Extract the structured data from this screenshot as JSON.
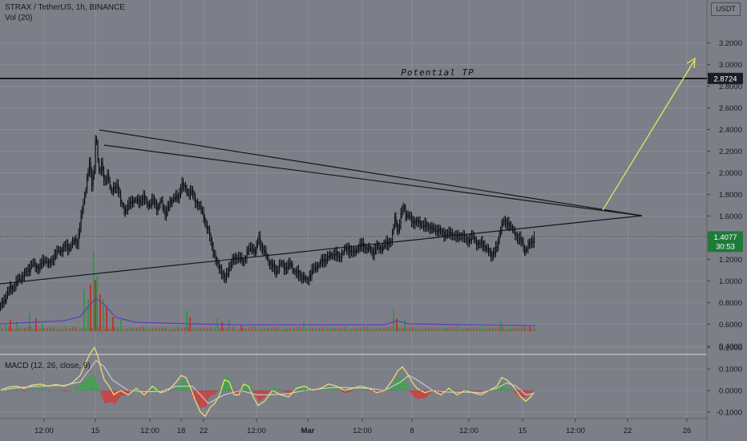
{
  "header": {
    "symbol_line": "STRAX / TetherUS, 1h, BINANCE",
    "volume_label": "Vol (20)",
    "macd_label": "MACD (12, 26, close, 9)",
    "currency": "USDT"
  },
  "colors": {
    "background": "#7c7f87",
    "grid": "#898c94",
    "candles": "#0e0f12",
    "trendlines": "#14161a",
    "projection_arrow": "#e6e85a",
    "tp_line": "#050505",
    "tp_badge_bg": "#1b1d22",
    "price_badge_bg": "#1f7a3a",
    "macd_line": "#e0d870",
    "signal_line": "#c2c4c8",
    "hist_up": "#3fa34d",
    "hist_down": "#d23b3b",
    "vol_up": "#3f8f4f",
    "vol_down": "#b8382f",
    "vol_ma": "#5a3fbf"
  },
  "chart_data": [
    {
      "type": "line",
      "pane": "price",
      "y_ticks": [
        "3.2000",
        "3.0000",
        "2.8000",
        "2.6000",
        "2.4000",
        "2.2000",
        "2.0000",
        "1.8000",
        "1.6000",
        "1.4000",
        "1.2000",
        "1.0000",
        "0.8000",
        "0.6000",
        "0.4000"
      ],
      "ylim": [
        0.3,
        3.35
      ],
      "x_ticks": [
        "12:00",
        "15",
        "12:00",
        "18",
        "22",
        "12:00",
        "Mar",
        "12:00",
        "8",
        "12:00",
        "15",
        "12:00",
        "22",
        "26"
      ],
      "series": [
        {
          "x": [
            0,
            6,
            12,
            20,
            30,
            40,
            48,
            56,
            60,
            66,
            72,
            80,
            86,
            92,
            96,
            100,
            104,
            108,
            111,
            114,
            117,
            119,
            121,
            123,
            126,
            130,
            134,
            138,
            142,
            146,
            150,
            155,
            160,
            166,
            172,
            178,
            184,
            190,
            196,
            200,
            205,
            210,
            216,
            222,
            226,
            230,
            234,
            238,
            242,
            246,
            250,
            254,
            258,
            262,
            266,
            270,
            275,
            280,
            285,
            290,
            296,
            302,
            308,
            314,
            318,
            322,
            326,
            332,
            338,
            344,
            350,
            356,
            362,
            368,
            374,
            378,
            382,
            386,
            392,
            398,
            404,
            410,
            416,
            422,
            428,
            434,
            440,
            446,
            452,
            458,
            464,
            470,
            476,
            482,
            488,
            492,
            496,
            500,
            503,
            506,
            510,
            516,
            522,
            528,
            534,
            540,
            546,
            552,
            558,
            564,
            570,
            576,
            582,
            588,
            594,
            600,
            606,
            612,
            616,
            620,
            624,
            627,
            630,
            634,
            638,
            642,
            646,
            650,
            654,
            658,
            662,
            666
          ],
          "y": [
            0.77,
            0.84,
            0.93,
            0.98,
            1.07,
            1.15,
            1.13,
            1.2,
            1.15,
            1.22,
            1.27,
            1.32,
            1.3,
            1.38,
            1.36,
            1.55,
            1.75,
            1.95,
            2.08,
            1.9,
            2.05,
            2.38,
            2.15,
            2.0,
            2.1,
            1.88,
            2.0,
            1.82,
            1.85,
            1.9,
            1.72,
            1.65,
            1.7,
            1.76,
            1.72,
            1.78,
            1.7,
            1.74,
            1.68,
            1.74,
            1.62,
            1.7,
            1.78,
            1.75,
            1.93,
            1.85,
            1.8,
            1.84,
            1.75,
            1.72,
            1.65,
            1.58,
            1.5,
            1.38,
            1.25,
            1.15,
            1.12,
            0.99,
            1.13,
            1.2,
            1.22,
            1.17,
            1.28,
            1.3,
            1.27,
            1.42,
            1.3,
            1.22,
            1.15,
            1.08,
            1.17,
            1.12,
            1.15,
            1.08,
            1.05,
            1.02,
            1.0,
            1.06,
            1.12,
            1.16,
            1.2,
            1.22,
            1.26,
            1.21,
            1.28,
            1.3,
            1.25,
            1.31,
            1.33,
            1.3,
            1.26,
            1.32,
            1.3,
            1.35,
            1.38,
            1.58,
            1.45,
            1.62,
            1.72,
            1.6,
            1.58,
            1.55,
            1.54,
            1.5,
            1.52,
            1.46,
            1.48,
            1.44,
            1.42,
            1.45,
            1.39,
            1.42,
            1.38,
            1.4,
            1.36,
            1.34,
            1.3,
            1.24,
            1.28,
            1.3,
            1.5,
            1.57,
            1.52,
            1.54,
            1.47,
            1.44,
            1.4,
            1.36,
            1.28,
            1.32,
            1.36,
            1.4
          ]
        }
      ],
      "current_price": "1.4077",
      "countdown": "30:53",
      "potential_tp": {
        "label": "Potential TP",
        "price": "2.8724"
      }
    },
    {
      "type": "bar",
      "pane": "volume",
      "up_spikes": [
        {
          "x": 6,
          "h": 8
        },
        {
          "x": 20,
          "h": 12
        },
        {
          "x": 36,
          "h": 22
        },
        {
          "x": 52,
          "h": 10
        },
        {
          "x": 104,
          "h": 52
        },
        {
          "x": 109,
          "h": 40
        },
        {
          "x": 116,
          "h": 100
        },
        {
          "x": 120,
          "h": 70
        },
        {
          "x": 128,
          "h": 40
        },
        {
          "x": 150,
          "h": 14
        },
        {
          "x": 232,
          "h": 26
        },
        {
          "x": 270,
          "h": 16
        },
        {
          "x": 285,
          "h": 14
        },
        {
          "x": 378,
          "h": 12
        },
        {
          "x": 490,
          "h": 28
        },
        {
          "x": 504,
          "h": 14
        },
        {
          "x": 598,
          "h": 6
        },
        {
          "x": 624,
          "h": 12
        }
      ],
      "down_spikes": [
        {
          "x": 12,
          "h": 14
        },
        {
          "x": 44,
          "h": 16
        },
        {
          "x": 112,
          "h": 58
        },
        {
          "x": 118,
          "h": 64
        },
        {
          "x": 124,
          "h": 46
        },
        {
          "x": 132,
          "h": 32
        },
        {
          "x": 140,
          "h": 18
        },
        {
          "x": 236,
          "h": 18
        },
        {
          "x": 276,
          "h": 12
        },
        {
          "x": 300,
          "h": 8
        },
        {
          "x": 494,
          "h": 16
        },
        {
          "x": 660,
          "h": 6
        }
      ]
    },
    {
      "type": "line",
      "pane": "macd",
      "y_ticks": [
        "0.2000",
        "0.1000",
        "0.0000",
        "-0.1000"
      ],
      "ylim": [
        -0.14,
        0.25
      ],
      "series": [
        {
          "name": "MACD",
          "x": [
            0,
            10,
            20,
            30,
            40,
            50,
            60,
            70,
            80,
            90,
            100,
            106,
            112,
            118,
            122,
            126,
            130,
            136,
            142,
            150,
            160,
            170,
            180,
            190,
            200,
            210,
            220,
            226,
            232,
            238,
            244,
            250,
            256,
            262,
            268,
            274,
            280,
            286,
            292,
            298,
            304,
            310,
            316,
            322,
            330,
            340,
            350,
            360,
            370,
            380,
            390,
            400,
            410,
            420,
            430,
            440,
            450,
            460,
            470,
            480,
            490,
            496,
            502,
            508,
            514,
            520,
            530,
            540,
            550,
            560,
            570,
            580,
            590,
            600,
            610,
            620,
            626,
            632,
            638,
            644,
            650,
            656,
            662,
            666
          ],
          "y": [
            0.0,
            0.015,
            0.02,
            0.01,
            0.025,
            0.03,
            0.02,
            0.028,
            0.02,
            0.035,
            0.07,
            0.12,
            0.17,
            0.2,
            0.16,
            0.1,
            0.05,
            0.02,
            -0.02,
            0.0,
            -0.02,
            0.01,
            -0.02,
            0.02,
            -0.01,
            0.0,
            0.04,
            0.07,
            0.06,
            0.01,
            -0.05,
            -0.1,
            -0.12,
            -0.08,
            -0.06,
            -0.02,
            0.05,
            0.04,
            -0.02,
            -0.02,
            0.03,
            0.02,
            -0.03,
            -0.07,
            -0.05,
            0.0,
            -0.02,
            -0.03,
            0.01,
            0.02,
            0.0,
            0.01,
            0.03,
            0.02,
            0.0,
            0.01,
            0.02,
            0.01,
            -0.01,
            0.0,
            0.05,
            0.09,
            0.11,
            0.08,
            0.04,
            0.01,
            -0.01,
            0.0,
            -0.02,
            0.01,
            -0.02,
            0.0,
            -0.01,
            -0.02,
            0.0,
            0.02,
            0.06,
            0.05,
            0.03,
            0.0,
            -0.03,
            -0.05,
            -0.03,
            -0.01
          ]
        },
        {
          "name": "Signal",
          "x": [
            0,
            20,
            40,
            60,
            80,
            100,
            110,
            120,
            130,
            140,
            160,
            180,
            200,
            220,
            240,
            260,
            280,
            300,
            320,
            340,
            360,
            380,
            400,
            420,
            440,
            460,
            480,
            500,
            510,
            520,
            540,
            560,
            580,
            600,
            620,
            632,
            644,
            656,
            666
          ],
          "y": [
            0.0,
            0.012,
            0.018,
            0.022,
            0.024,
            0.04,
            0.09,
            0.14,
            0.11,
            0.05,
            0.0,
            -0.005,
            -0.005,
            0.02,
            0.02,
            -0.06,
            -0.02,
            0.0,
            -0.02,
            -0.02,
            -0.015,
            0.0,
            0.008,
            0.015,
            0.012,
            0.01,
            0.0,
            0.04,
            0.07,
            0.05,
            0.0,
            -0.008,
            -0.008,
            -0.01,
            0.01,
            0.035,
            0.02,
            -0.02,
            -0.015
          ]
        }
      ]
    }
  ]
}
